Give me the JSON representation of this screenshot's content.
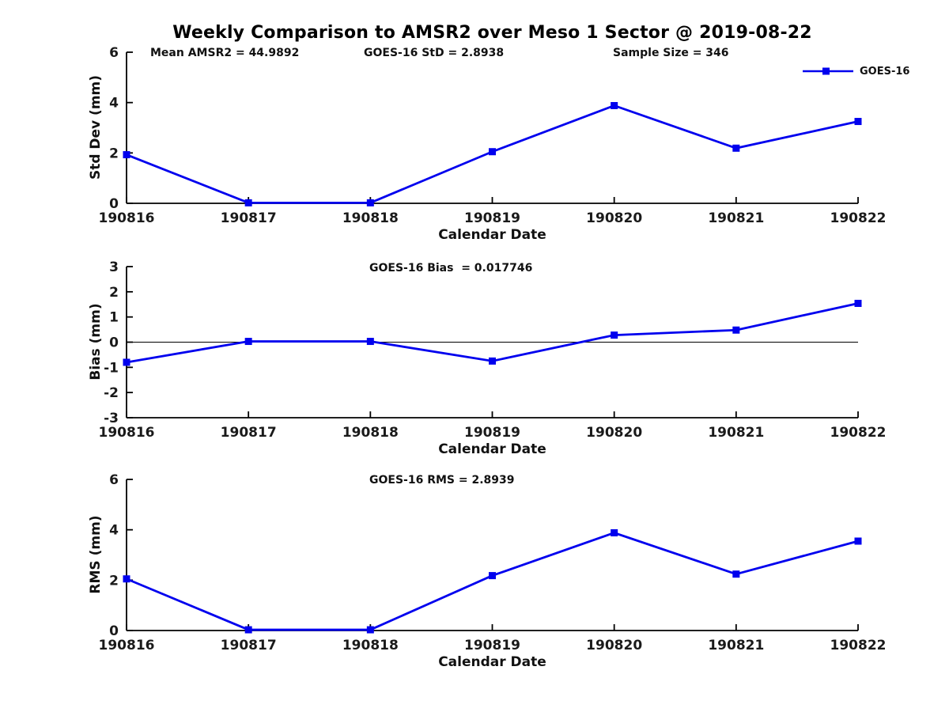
{
  "figure": {
    "title": "Weekly Comparison to AMSR2 over Meso 1 Sector @ 2019-08-22"
  },
  "colors": {
    "series": "#0000EE",
    "axis": "#000000",
    "text": "#1a1a1a",
    "background": "#ffffff"
  },
  "legend": {
    "label": "GOES-16",
    "marker": "square"
  },
  "subplot1": {
    "annotations": [
      "Mean AMSR2 = 44.9892",
      "GOES-16 StD = 2.8938",
      "Sample Size = 346"
    ]
  },
  "subplot2": {
    "annotation": "GOES-16 Bias  = 0.017746"
  },
  "subplot3": {
    "annotation": "GOES-16 RMS = 2.8939"
  },
  "chart_data": [
    {
      "type": "line",
      "series_name": "GOES-16",
      "categories": [
        "190816",
        "190817",
        "190818",
        "190819",
        "190820",
        "190821",
        "190822"
      ],
      "values": [
        1.93,
        0.02,
        0.02,
        2.05,
        3.88,
        2.19,
        3.25
      ],
      "title": "Mean AMSR2 = 44.9892 | GOES-16 StD = 2.8938 | Sample Size = 346",
      "xlabel": "Calendar Date",
      "ylabel": "Std Dev (mm)",
      "ylim": [
        0,
        6
      ],
      "yticks": [
        0,
        2,
        4,
        6
      ],
      "grid": false,
      "zero_line": false,
      "legend_position": "upper right",
      "marker": "square"
    },
    {
      "type": "line",
      "series_name": "GOES-16",
      "categories": [
        "190816",
        "190817",
        "190818",
        "190819",
        "190820",
        "190821",
        "190822"
      ],
      "values": [
        -0.8,
        0.03,
        0.03,
        -0.75,
        0.28,
        0.48,
        1.54
      ],
      "title": "GOES-16 Bias  = 0.017746",
      "xlabel": "Calendar Date",
      "ylabel": "Bias (mm)",
      "ylim": [
        -3,
        3
      ],
      "yticks": [
        -3,
        -2,
        -1,
        0,
        1,
        2,
        3
      ],
      "grid": false,
      "zero_line": true,
      "legend_position": "none",
      "marker": "square"
    },
    {
      "type": "line",
      "series_name": "GOES-16",
      "categories": [
        "190816",
        "190817",
        "190818",
        "190819",
        "190820",
        "190821",
        "190822"
      ],
      "values": [
        2.05,
        0.03,
        0.03,
        2.18,
        3.88,
        2.24,
        3.55
      ],
      "title": "GOES-16 RMS = 2.8939",
      "xlabel": "Calendar Date",
      "ylabel": "RMS (mm)",
      "ylim": [
        0,
        6
      ],
      "yticks": [
        0,
        2,
        4,
        6
      ],
      "grid": false,
      "zero_line": false,
      "legend_position": "none",
      "marker": "square"
    }
  ]
}
